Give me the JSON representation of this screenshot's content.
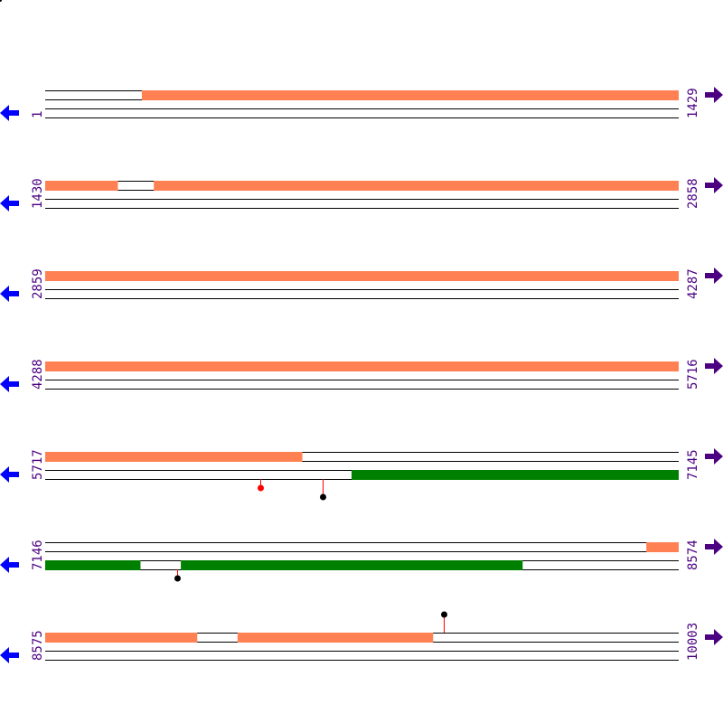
{
  "colors": {
    "forward_feature": "#ff8052",
    "reverse_feature": "#008000",
    "strand_line": "#000000",
    "left_arrow": "#0000ff",
    "right_arrow": "#4b0082",
    "label": "#4b0082",
    "stem": "#ff0000"
  },
  "bases_per_row": 1429,
  "rows": [
    {
      "start": "1",
      "end": "1429",
      "top": [
        [
          219,
          1429
        ]
      ],
      "bottom": [],
      "markers": []
    },
    {
      "start": "1430",
      "end": "2858",
      "top": [
        [
          1430,
          1593
        ],
        [
          1675,
          2858
        ]
      ],
      "bottom": [],
      "markers": []
    },
    {
      "start": "2859",
      "end": "4287",
      "top": [
        [
          2859,
          4287
        ]
      ],
      "bottom": [],
      "markers": []
    },
    {
      "start": "4288",
      "end": "5716",
      "top": [
        [
          4288,
          5716
        ]
      ],
      "bottom": [],
      "markers": []
    },
    {
      "start": "5717",
      "end": "7145",
      "top": [
        [
          5717,
          6296
        ]
      ],
      "bottom": [
        [
          6408,
          7145
        ]
      ],
      "markers": [
        {
          "pos": 6202,
          "side": "below",
          "level": 1,
          "color": "#ff0000"
        },
        {
          "pos": 6343,
          "side": "below",
          "level": 2,
          "color": "#000000"
        }
      ]
    },
    {
      "start": "7146",
      "end": "8574",
      "top": [
        [
          8502,
          8574
        ]
      ],
      "bottom": [
        [
          7146,
          7360
        ],
        [
          7452,
          8222
        ]
      ],
      "markers": [
        {
          "pos": 7444,
          "side": "below",
          "level": 1,
          "color": "#000000"
        }
      ]
    },
    {
      "start": "8575",
      "end": "10003",
      "top": [
        [
          8575,
          8917
        ],
        [
          9009,
          9449
        ]
      ],
      "bottom": [],
      "markers": [
        {
          "pos": 9474,
          "side": "above",
          "level": 2,
          "color": "#000000"
        }
      ]
    }
  ]
}
